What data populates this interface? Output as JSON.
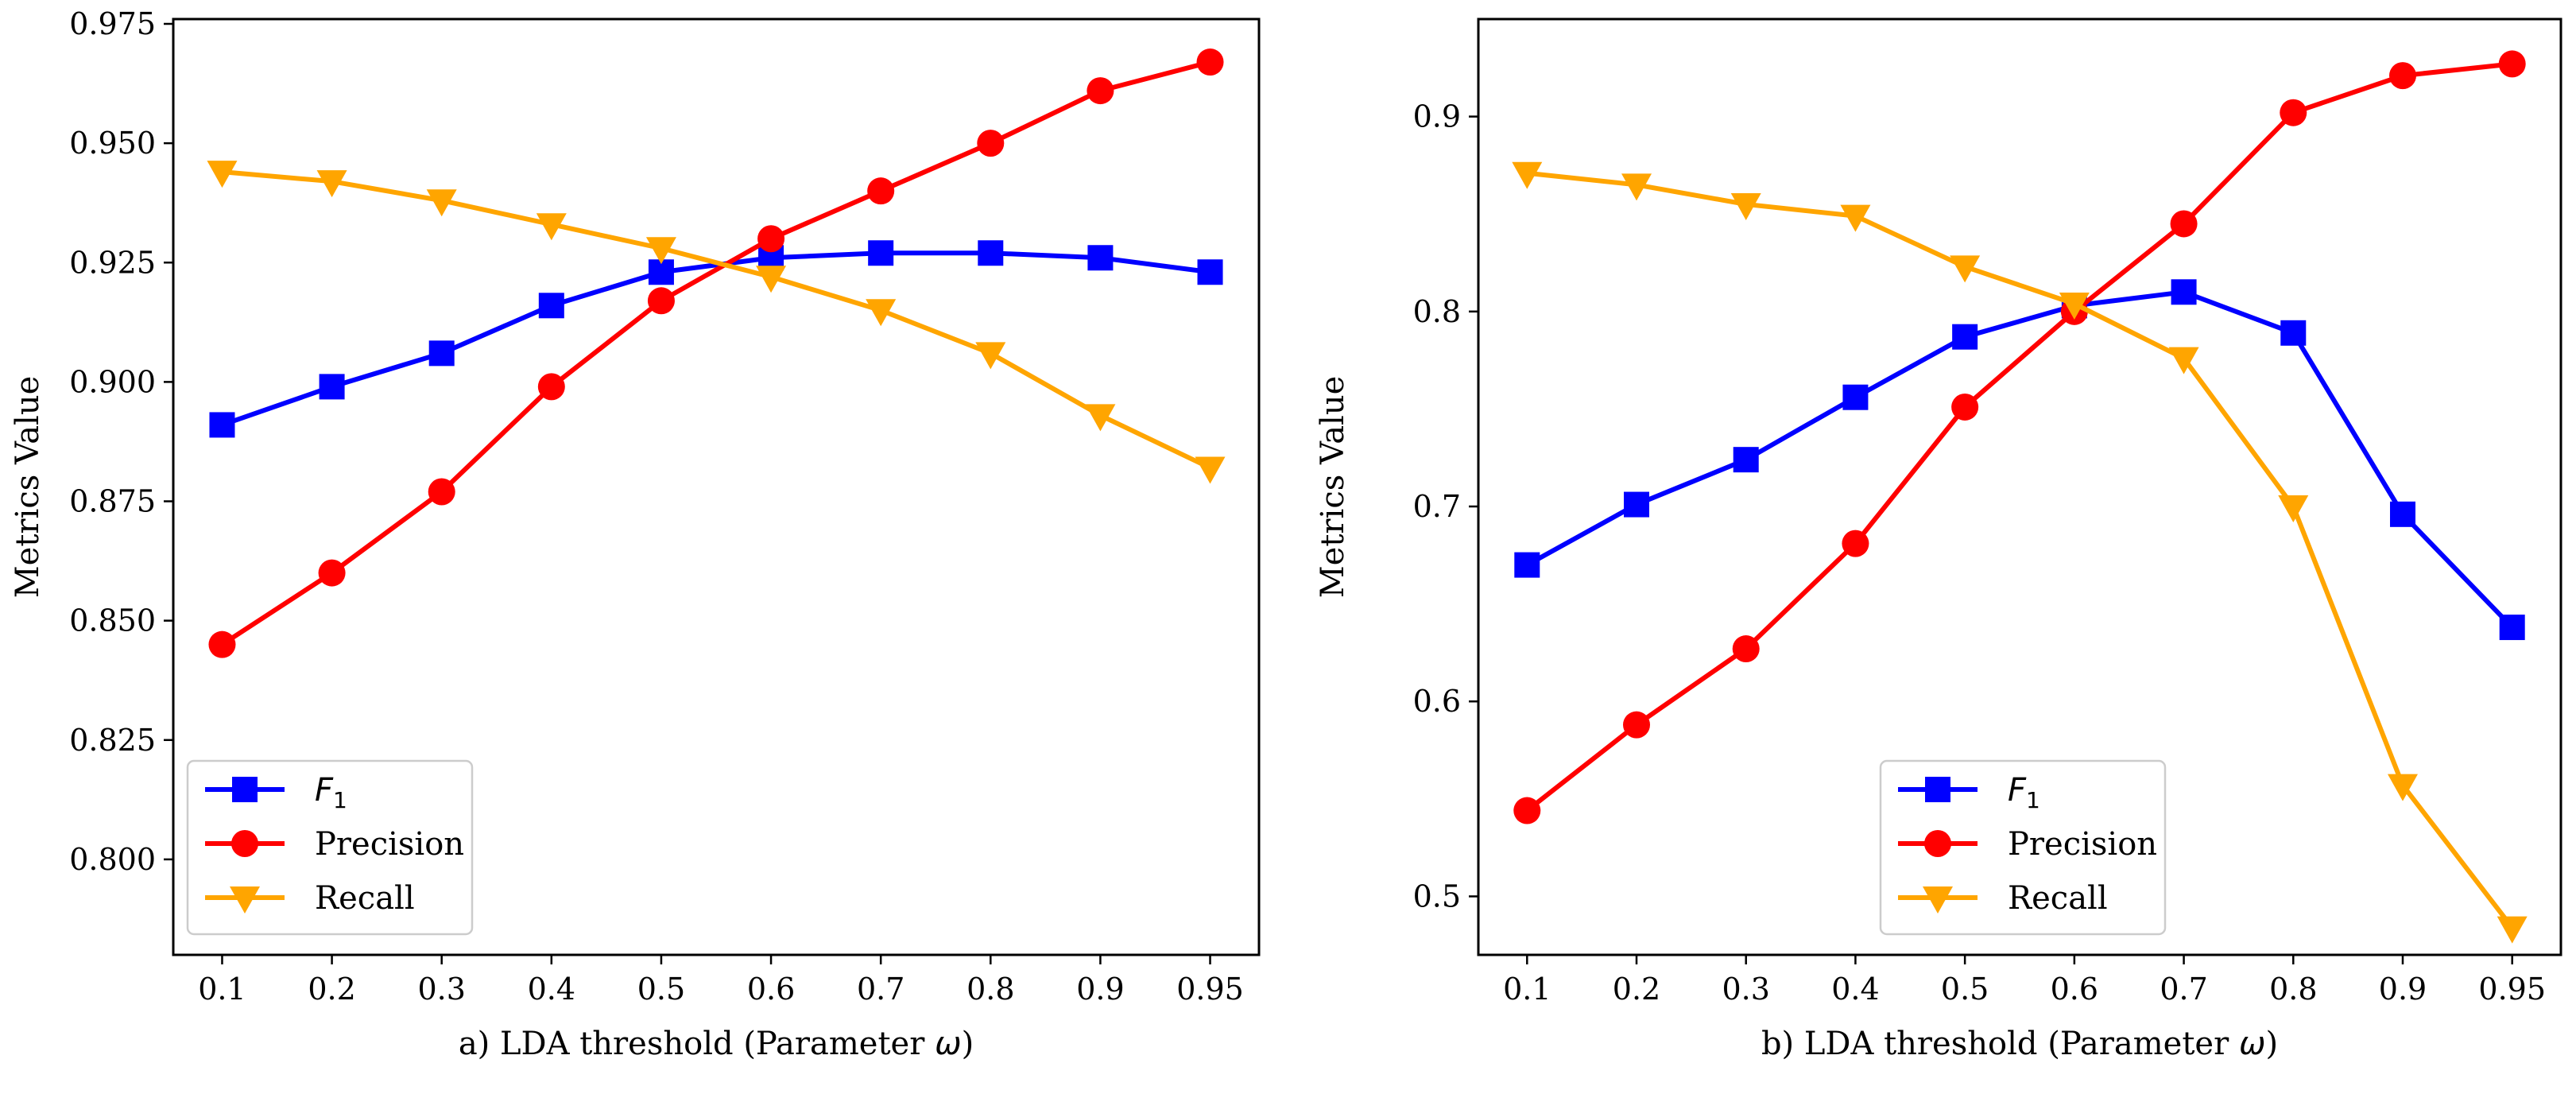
{
  "chart_data": [
    {
      "type": "line",
      "xlabel_prefix": "a) LDA threshold (Parameter ",
      "xlabel_symbol": "ω",
      "xlabel_suffix": ")",
      "ylabel": "Metrics Value",
      "categories": [
        "0.1",
        "0.2",
        "0.3",
        "0.4",
        "0.5",
        "0.6",
        "0.7",
        "0.8",
        "0.9",
        "0.95"
      ],
      "ylim": [
        0.78,
        0.976
      ],
      "yticks": [
        "0.800",
        "0.825",
        "0.850",
        "0.875",
        "0.900",
        "0.925",
        "0.950",
        "0.975"
      ],
      "legend_position": "lower-left",
      "series": [
        {
          "name": "F",
          "name_subscript": "1",
          "color": "#0000ff",
          "marker": "square",
          "values": [
            0.891,
            0.899,
            0.906,
            0.916,
            0.923,
            0.926,
            0.927,
            0.927,
            0.926,
            0.923
          ]
        },
        {
          "name": "Precision",
          "color": "#ff0000",
          "marker": "circle",
          "values": [
            0.845,
            0.86,
            0.877,
            0.899,
            0.917,
            0.93,
            0.94,
            0.95,
            0.961,
            0.967
          ]
        },
        {
          "name": "Recall",
          "color": "#ffa500",
          "marker": "triangle-down",
          "values": [
            0.944,
            0.942,
            0.938,
            0.933,
            0.928,
            0.922,
            0.915,
            0.906,
            0.893,
            0.882
          ]
        }
      ]
    },
    {
      "type": "line",
      "xlabel_prefix": "b) LDA threshold (Parameter ",
      "xlabel_symbol": "ω",
      "xlabel_suffix": ")",
      "ylabel": "Metrics Value",
      "categories": [
        "0.1",
        "0.2",
        "0.3",
        "0.4",
        "0.5",
        "0.6",
        "0.7",
        "0.8",
        "0.9",
        "0.95"
      ],
      "ylim": [
        0.47,
        0.95
      ],
      "yticks": [
        "0.5",
        "0.6",
        "0.7",
        "0.8",
        "0.9"
      ],
      "legend_position": "lower-center",
      "series": [
        {
          "name": "F",
          "name_subscript": "1",
          "color": "#0000ff",
          "marker": "square",
          "values": [
            0.67,
            0.701,
            0.724,
            0.756,
            0.787,
            0.803,
            0.81,
            0.789,
            0.696,
            0.638
          ]
        },
        {
          "name": "Precision",
          "color": "#ff0000",
          "marker": "circle",
          "values": [
            0.544,
            0.588,
            0.627,
            0.681,
            0.751,
            0.8,
            0.845,
            0.902,
            0.921,
            0.927
          ]
        },
        {
          "name": "Recall",
          "color": "#ffa500",
          "marker": "triangle-down",
          "values": [
            0.871,
            0.865,
            0.855,
            0.849,
            0.823,
            0.804,
            0.776,
            0.7,
            0.557,
            0.484
          ]
        }
      ]
    }
  ]
}
